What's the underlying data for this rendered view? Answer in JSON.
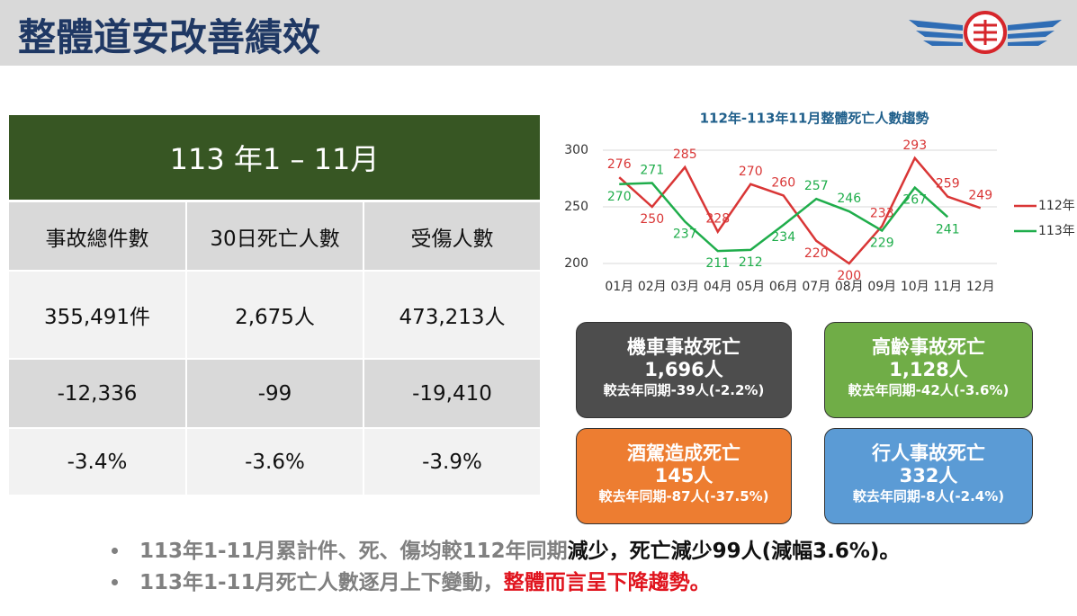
{
  "header": {
    "title": "整體道安改善績效"
  },
  "table": {
    "title": "113 年1 – 11月",
    "columns": [
      "事故總件數",
      "30日死亡人數",
      "受傷人數"
    ],
    "rows": [
      [
        "355,491件",
        "2,675人",
        "473,213人"
      ],
      [
        "-12,336",
        "-99",
        "-19,410"
      ],
      [
        "-3.4%",
        "-3.6%",
        "-3.9%"
      ]
    ]
  },
  "chart_data": {
    "type": "line",
    "title": "112年-113年11月整體死亡人數趨勢",
    "categories": [
      "01月",
      "02月",
      "03月",
      "04月",
      "05月",
      "06月",
      "07月",
      "08月",
      "09月",
      "10月",
      "11月",
      "12月"
    ],
    "series": [
      {
        "name": "112年",
        "color": "#d93636",
        "values": [
          276,
          250,
          285,
          228,
          270,
          260,
          220,
          200,
          233,
          293,
          259,
          249
        ]
      },
      {
        "name": "113年",
        "color": "#1fad4b",
        "values": [
          270,
          271,
          237,
          211,
          212,
          234,
          257,
          246,
          229,
          267,
          241,
          null
        ]
      }
    ],
    "ylim": [
      200,
      300
    ],
    "yticks": [
      200,
      250,
      300
    ],
    "grid": true,
    "legend": "right"
  },
  "cards": [
    {
      "title": "機車事故死亡",
      "value": "1,696人",
      "compare": "較去年同期-39人(-2.2%)",
      "color": "#4d4d4d"
    },
    {
      "title": "高齡事故死亡",
      "value": "1,128人",
      "compare": "較去年同期-42人(-3.6%)",
      "color": "#70ad47"
    },
    {
      "title": "酒駕造成死亡",
      "value": "145人",
      "compare": "較去年同期-87人(-37.5%)",
      "color": "#ed7d31"
    },
    {
      "title": "行人事故死亡",
      "value": "332人",
      "compare": "較去年同期-8人(-2.4%)",
      "color": "#5b9bd5"
    }
  ],
  "bullets": [
    [
      {
        "text": "113年1-11月累計件、死、傷均較112年同期",
        "color": "#808080"
      },
      {
        "text": "減少，死亡減少99人(減幅3.6%)。",
        "color": "#111111"
      }
    ],
    [
      {
        "text": "113年1-11月死亡人數逐月上下變動，",
        "color": "#808080"
      },
      {
        "text": "整體而言呈下降趨勢。",
        "color": "#e0141e"
      }
    ]
  ]
}
